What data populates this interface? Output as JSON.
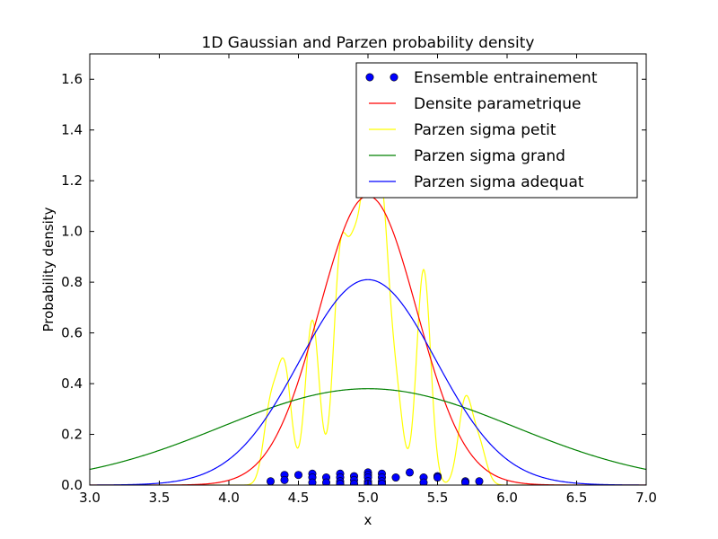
{
  "chart_data": {
    "type": "line",
    "title": "1D Gaussian and Parzen probability density",
    "xlabel": "x",
    "ylabel": "Probability density",
    "xlim": [
      3.0,
      7.0
    ],
    "ylim": [
      0.0,
      1.7
    ],
    "xticks": [
      "3.0",
      "3.5",
      "4.0",
      "4.5",
      "5.0",
      "5.5",
      "6.0",
      "6.5",
      "7.0"
    ],
    "yticks": [
      "0.0",
      "0.2",
      "0.4",
      "0.6",
      "0.8",
      "1.0",
      "1.2",
      "1.4",
      "1.6"
    ],
    "grid": false,
    "legend_position": "top-right",
    "training_points": {
      "name": "Ensemble entrainement",
      "color": "#0000ff",
      "x": [
        4.3,
        4.4,
        4.4,
        4.5,
        4.6,
        4.6,
        4.6,
        4.7,
        4.7,
        4.8,
        4.8,
        4.8,
        4.8,
        4.9,
        4.9,
        4.9,
        5.0,
        5.0,
        5.0,
        5.0,
        5.0,
        5.1,
        5.1,
        5.1,
        5.1,
        5.2,
        5.3,
        5.4,
        5.4,
        5.5,
        5.5,
        5.7,
        5.7,
        5.8
      ],
      "y": [
        0.015,
        0.04,
        0.02,
        0.04,
        0.045,
        0.03,
        0.01,
        0.03,
        0.01,
        0.045,
        0.03,
        0.015,
        0.005,
        0.035,
        0.02,
        0.005,
        0.05,
        0.04,
        0.03,
        0.015,
        0.005,
        0.045,
        0.03,
        0.015,
        0.005,
        0.03,
        0.05,
        0.03,
        0.01,
        0.035,
        0.03,
        0.015,
        0.01,
        0.015
      ]
    },
    "series": [
      {
        "name": "Densite parametrique",
        "color": "#ff0000",
        "kind": "gaussian",
        "components": [
          {
            "mu": 5.0,
            "sigma": 0.35,
            "amp": 1.14
          }
        ]
      },
      {
        "name": "Parzen sigma petit",
        "color": "#ffff00",
        "kind": "mixture",
        "components": [
          {
            "mu": 4.3,
            "sigma": 0.05,
            "amp": 0.3
          },
          {
            "mu": 4.4,
            "sigma": 0.05,
            "amp": 0.45
          },
          {
            "mu": 4.6,
            "sigma": 0.05,
            "amp": 0.65
          },
          {
            "mu": 4.8,
            "sigma": 0.05,
            "amp": 0.85
          },
          {
            "mu": 4.9,
            "sigma": 0.05,
            "amp": 0.75
          },
          {
            "mu": 5.0,
            "sigma": 0.05,
            "amp": 1.1
          },
          {
            "mu": 5.1,
            "sigma": 0.05,
            "amp": 1.0
          },
          {
            "mu": 5.2,
            "sigma": 0.05,
            "amp": 0.35
          },
          {
            "mu": 5.4,
            "sigma": 0.05,
            "amp": 0.85
          },
          {
            "mu": 5.7,
            "sigma": 0.05,
            "amp": 0.33
          },
          {
            "mu": 5.8,
            "sigma": 0.05,
            "amp": 0.15
          }
        ]
      },
      {
        "name": "Parzen sigma grand",
        "color": "#008000",
        "kind": "gaussian",
        "components": [
          {
            "mu": 5.0,
            "sigma": 1.05,
            "amp": 0.38
          }
        ]
      },
      {
        "name": "Parzen sigma adequat",
        "color": "#0000ff",
        "kind": "gaussian",
        "components": [
          {
            "mu": 5.0,
            "sigma": 0.49,
            "amp": 0.81
          }
        ]
      }
    ]
  }
}
